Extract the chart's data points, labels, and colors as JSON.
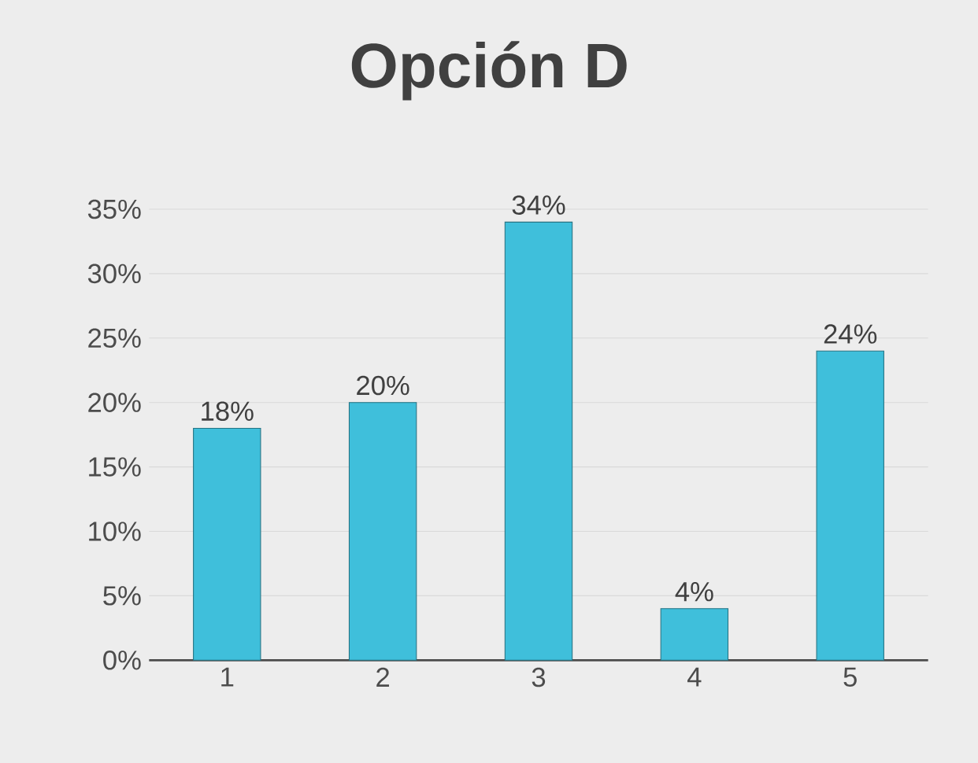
{
  "chart_data": {
    "type": "bar",
    "title": "Opción D",
    "categories": [
      "1",
      "2",
      "3",
      "4",
      "5"
    ],
    "values": [
      18,
      20,
      34,
      4,
      24
    ],
    "value_labels": [
      "18%",
      "20%",
      "34%",
      "4%",
      "24%"
    ],
    "color": "#3fbfdb",
    "ylim": [
      0,
      35
    ],
    "yticks": [
      {
        "value": 0,
        "label": "0%"
      },
      {
        "value": 5,
        "label": "5%"
      },
      {
        "value": 10,
        "label": "10%"
      },
      {
        "value": 15,
        "label": "15%"
      },
      {
        "value": 20,
        "label": "20%"
      },
      {
        "value": 25,
        "label": "25%"
      },
      {
        "value": 30,
        "label": "30%"
      },
      {
        "value": 35,
        "label": "35%"
      }
    ],
    "grid": "y"
  }
}
